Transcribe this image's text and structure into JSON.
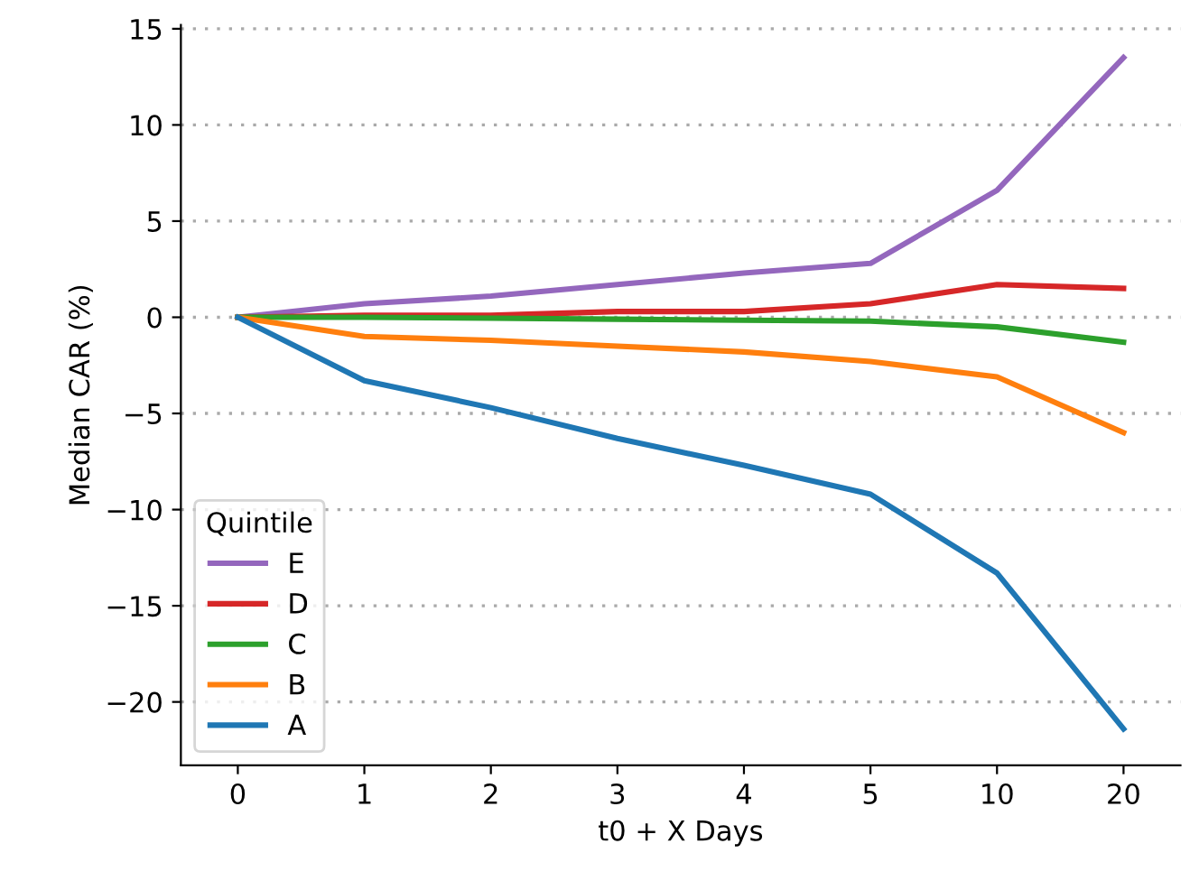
{
  "chart_data": {
    "type": "line",
    "xlabel": "t0 + X Days",
    "ylabel": "Median CAR (%)",
    "categories": [
      "0",
      "1",
      "2",
      "3",
      "4",
      "5",
      "10",
      "20"
    ],
    "series": [
      {
        "name": "E",
        "color": "#9467bd",
        "values": [
          0,
          0.7,
          1.1,
          1.7,
          2.3,
          2.8,
          6.6,
          13.5
        ]
      },
      {
        "name": "D",
        "color": "#d62728",
        "values": [
          0,
          0.1,
          0.1,
          0.3,
          0.3,
          0.7,
          1.7,
          1.5
        ]
      },
      {
        "name": "C",
        "color": "#2ca02c",
        "values": [
          0,
          0,
          -0.05,
          -0.1,
          -0.15,
          -0.2,
          -0.5,
          -1.3
        ]
      },
      {
        "name": "B",
        "color": "#ff7f0e",
        "values": [
          0,
          -1.0,
          -1.2,
          -1.5,
          -1.8,
          -2.3,
          -3.1,
          -6.0
        ]
      },
      {
        "name": "A",
        "color": "#1f77b4",
        "values": [
          0,
          -3.3,
          -4.7,
          -6.3,
          -7.7,
          -9.2,
          -13.3,
          -21.4
        ]
      }
    ],
    "legend_title": "Quintile",
    "legend": "bottom left",
    "ylim": [
      -23.3,
      15.2
    ],
    "yticks": [
      {
        "value": -20,
        "label": "−20"
      },
      {
        "value": -15,
        "label": "−15"
      },
      {
        "value": -10,
        "label": "−10"
      },
      {
        "value": -5,
        "label": "−5"
      },
      0,
      5,
      10,
      15
    ],
    "grid": "y",
    "marker": "none",
    "line_style": "solid"
  }
}
